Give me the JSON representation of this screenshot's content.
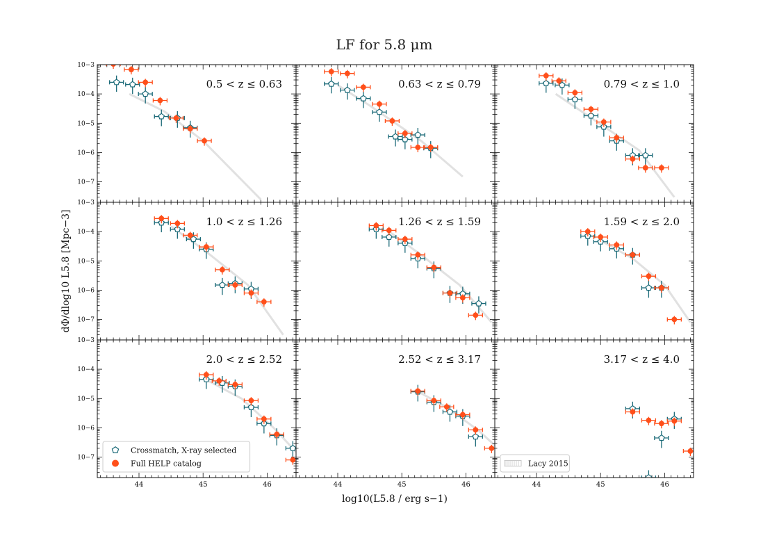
{
  "chart_data": {
    "type": "scatter",
    "title": "LF for 5.8 μm",
    "xlabel": "log10(L5.8 / erg s−1)",
    "ylabel": "dΦ/dlog10 L5.8 [Mpc−3]",
    "xlim": [
      43.35,
      46.45
    ],
    "ylim": [
      2e-08,
      0.001
    ],
    "yscale": "log",
    "x_ticks": [
      "44",
      "45",
      "46"
    ],
    "y_ticks": [
      {
        "value": 0.001,
        "label": "10−3"
      },
      {
        "value": 0.0001,
        "label": "10−4"
      },
      {
        "value": 1e-05,
        "label": "10−5"
      },
      {
        "value": 1e-06,
        "label": "10−6"
      },
      {
        "value": 1e-07,
        "label": "10−7"
      }
    ],
    "colors": {
      "crossmatch": "#1b6a78",
      "help": "#ff4f1a",
      "lacy": "#c8c8c8"
    },
    "legend": [
      {
        "label": "Crossmatch, X-ray selected",
        "placement": "lower-left",
        "panel": 6,
        "marker": "pentagon-open"
      },
      {
        "label": "Full HELP catalog",
        "placement": "lower-left",
        "panel": 6,
        "marker": "circle-filled"
      },
      {
        "label": "Lacy 2015",
        "placement": "lower-left",
        "panel": 8,
        "marker": "hatched-patch"
      }
    ],
    "panels": [
      {
        "label": "0.5 < z ≤ 0.63",
        "lacy": [
          [
            43.85,
            0.0001
          ],
          [
            44.4,
            2.5e-05
          ],
          [
            45.0,
            2.5e-06
          ],
          [
            45.9,
            2.5e-08
          ]
        ],
        "crossmatch": [
          [
            43.65,
            0.00025
          ],
          [
            43.9,
            0.00021
          ],
          [
            44.1,
            0.0001
          ],
          [
            44.35,
            1.7e-05
          ],
          [
            44.6,
            1.5e-05
          ],
          [
            44.8,
            7e-06
          ]
        ],
        "help": [
          [
            43.6,
            0.00105
          ],
          [
            43.88,
            0.00068
          ],
          [
            44.1,
            0.00025
          ],
          [
            44.33,
            6e-05
          ],
          [
            44.58,
            1.5e-05
          ],
          [
            44.8,
            6.5e-06
          ],
          [
            45.02,
            2.5e-06
          ]
        ]
      },
      {
        "label": "0.63 < z ≤ 0.79",
        "lacy": [
          [
            44.0,
            0.0002
          ],
          [
            44.5,
            4e-05
          ],
          [
            45.3,
            2.5e-06
          ],
          [
            45.95,
            1.5e-07
          ]
        ],
        "crossmatch": [
          [
            43.9,
            0.00022
          ],
          [
            44.15,
            0.000135
          ],
          [
            44.4,
            7e-05
          ],
          [
            44.65,
            2.4e-05
          ],
          [
            44.9,
            3.5e-06
          ],
          [
            45.05,
            2.8e-06
          ],
          [
            45.25,
            4e-06
          ],
          [
            45.45,
            1.4e-06
          ]
        ],
        "help": [
          [
            43.9,
            0.00058
          ],
          [
            44.15,
            0.0005
          ],
          [
            44.4,
            0.00017
          ],
          [
            44.65,
            4.5e-05
          ],
          [
            44.85,
            1.2e-05
          ],
          [
            45.05,
            4.5e-06
          ],
          [
            45.25,
            1.5e-06
          ],
          [
            45.45,
            1.5e-06
          ]
        ]
      },
      {
        "label": "0.79 < z ≤ 1.0",
        "lacy": [
          [
            44.3,
            0.0001
          ],
          [
            44.9,
            1.3e-05
          ],
          [
            45.6,
            1.2e-06
          ],
          [
            46.15,
            3e-08
          ]
        ],
        "crossmatch": [
          [
            44.15,
            0.00023
          ],
          [
            44.4,
            0.0002
          ],
          [
            44.6,
            6.5e-05
          ],
          [
            44.85,
            1.8e-05
          ],
          [
            45.05,
            7.5e-06
          ],
          [
            45.25,
            2.5e-06
          ],
          [
            45.5,
            8e-07
          ],
          [
            45.7,
            8e-07
          ]
        ],
        "help": [
          [
            44.15,
            0.00042
          ],
          [
            44.35,
            0.00028
          ],
          [
            44.6,
            0.00011
          ],
          [
            44.85,
            3e-05
          ],
          [
            45.05,
            1.1e-05
          ],
          [
            45.25,
            3.2e-06
          ],
          [
            45.5,
            6e-07
          ],
          [
            45.7,
            3e-07
          ],
          [
            45.95,
            3e-07
          ]
        ]
      },
      {
        "label": "1.0 < z ≤ 1.26",
        "lacy": [
          [
            44.5,
            0.00015
          ],
          [
            45.0,
            2.5e-05
          ],
          [
            45.7,
            1.5e-06
          ],
          [
            46.25,
            3e-08
          ]
        ],
        "crossmatch": [
          [
            44.35,
            0.0002
          ],
          [
            44.6,
            0.00012
          ],
          [
            44.85,
            5.5e-05
          ],
          [
            45.05,
            2.5e-05
          ],
          [
            45.3,
            1.5e-06
          ],
          [
            45.5,
            1.7e-06
          ],
          [
            45.75,
            1.1e-06
          ]
        ],
        "help": [
          [
            44.35,
            0.00028
          ],
          [
            44.6,
            0.00019
          ],
          [
            44.8,
            7.5e-05
          ],
          [
            45.05,
            3e-05
          ],
          [
            45.3,
            5e-06
          ],
          [
            45.5,
            1.5e-06
          ],
          [
            45.75,
            8e-07
          ],
          [
            45.95,
            4e-07
          ]
        ]
      },
      {
        "label": "1.26 < z ≤ 1.59",
        "lacy": [
          [
            44.8,
            0.0001
          ],
          [
            45.3,
            1.6e-05
          ],
          [
            45.9,
            1.5e-06
          ],
          [
            46.4,
            8e-08
          ]
        ],
        "crossmatch": [
          [
            44.6,
            0.00012
          ],
          [
            44.8,
            6.5e-05
          ],
          [
            45.05,
            4e-05
          ],
          [
            45.25,
            1.2e-05
          ],
          [
            45.5,
            5.5e-06
          ],
          [
            45.75,
            8e-07
          ],
          [
            45.95,
            7.5e-07
          ],
          [
            46.2,
            3.5e-07
          ]
        ],
        "help": [
          [
            44.6,
            0.00016
          ],
          [
            44.8,
            0.00011
          ],
          [
            45.05,
            5.5e-05
          ],
          [
            45.25,
            1.6e-05
          ],
          [
            45.5,
            6e-06
          ],
          [
            45.75,
            8e-07
          ],
          [
            45.95,
            5.5e-07
          ],
          [
            46.15,
            1.4e-07
          ]
        ]
      },
      {
        "label": "1.59 < z ≤ 2.0",
        "lacy": [
          [
            45.0,
            5e-05
          ],
          [
            45.5,
            1.2e-05
          ],
          [
            46.0,
            1.5e-06
          ],
          [
            46.4,
            8e-08
          ]
        ],
        "crossmatch": [
          [
            44.8,
            7e-05
          ],
          [
            45.0,
            4.5e-05
          ],
          [
            45.25,
            2.6e-05
          ],
          [
            45.5,
            1.6e-05
          ],
          [
            45.75,
            1.2e-06
          ],
          [
            45.95,
            1.2e-06
          ]
        ],
        "help": [
          [
            44.8,
            0.0001
          ],
          [
            45.0,
            6.5e-05
          ],
          [
            45.25,
            3.5e-05
          ],
          [
            45.5,
            1.6e-05
          ],
          [
            45.75,
            3e-06
          ],
          [
            45.95,
            1.2e-06
          ],
          [
            46.15,
            1e-07
          ]
        ]
      },
      {
        "label": "2.0 < z ≤ 2.52",
        "lacy": [
          [
            45.0,
            5e-05
          ],
          [
            45.6,
            1e-05
          ],
          [
            46.1,
            1e-06
          ],
          [
            46.45,
            1.5e-07
          ]
        ],
        "crossmatch": [
          [
            45.05,
            4.5e-05
          ],
          [
            45.3,
            3.4e-05
          ],
          [
            45.5,
            2.6e-05
          ],
          [
            45.75,
            5e-06
          ],
          [
            45.95,
            1.4e-06
          ],
          [
            46.15,
            5.5e-07
          ],
          [
            46.4,
            2e-07
          ]
        ],
        "help": [
          [
            45.05,
            6.5e-05
          ],
          [
            45.25,
            4e-05
          ],
          [
            45.5,
            3e-05
          ],
          [
            45.75,
            8.5e-06
          ],
          [
            45.95,
            2e-06
          ],
          [
            46.15,
            6e-07
          ],
          [
            46.4,
            8e-08
          ]
        ]
      },
      {
        "label": "2.52 < z ≤ 3.17",
        "lacy": [
          [
            45.2,
            2e-05
          ],
          [
            45.7,
            5e-06
          ],
          [
            46.2,
            8e-07
          ],
          [
            46.45,
            2.5e-07
          ]
        ],
        "crossmatch": [
          [
            45.25,
            1.7e-05
          ],
          [
            45.5,
            7.5e-06
          ],
          [
            45.75,
            3.5e-06
          ],
          [
            45.95,
            2.5e-06
          ],
          [
            46.15,
            5e-07
          ]
        ],
        "help": [
          [
            45.25,
            1.8e-05
          ],
          [
            45.5,
            8.5e-06
          ],
          [
            45.7,
            5.2e-06
          ],
          [
            45.95,
            2.8e-06
          ],
          [
            46.15,
            8.5e-07
          ],
          [
            46.4,
            2e-07
          ]
        ]
      },
      {
        "label": "3.17 < z ≤ 4.0",
        "lacy": [],
        "crossmatch": [
          [
            45.5,
            4.5e-06
          ],
          [
            45.75,
            2e-08
          ],
          [
            45.95,
            4.5e-07
          ],
          [
            46.15,
            2e-06
          ]
        ],
        "help": [
          [
            45.5,
            3.5e-06
          ],
          [
            45.75,
            1.8e-06
          ],
          [
            45.95,
            1.4e-06
          ],
          [
            46.15,
            1.7e-06
          ],
          [
            46.4,
            1.6e-07
          ]
        ]
      }
    ]
  }
}
